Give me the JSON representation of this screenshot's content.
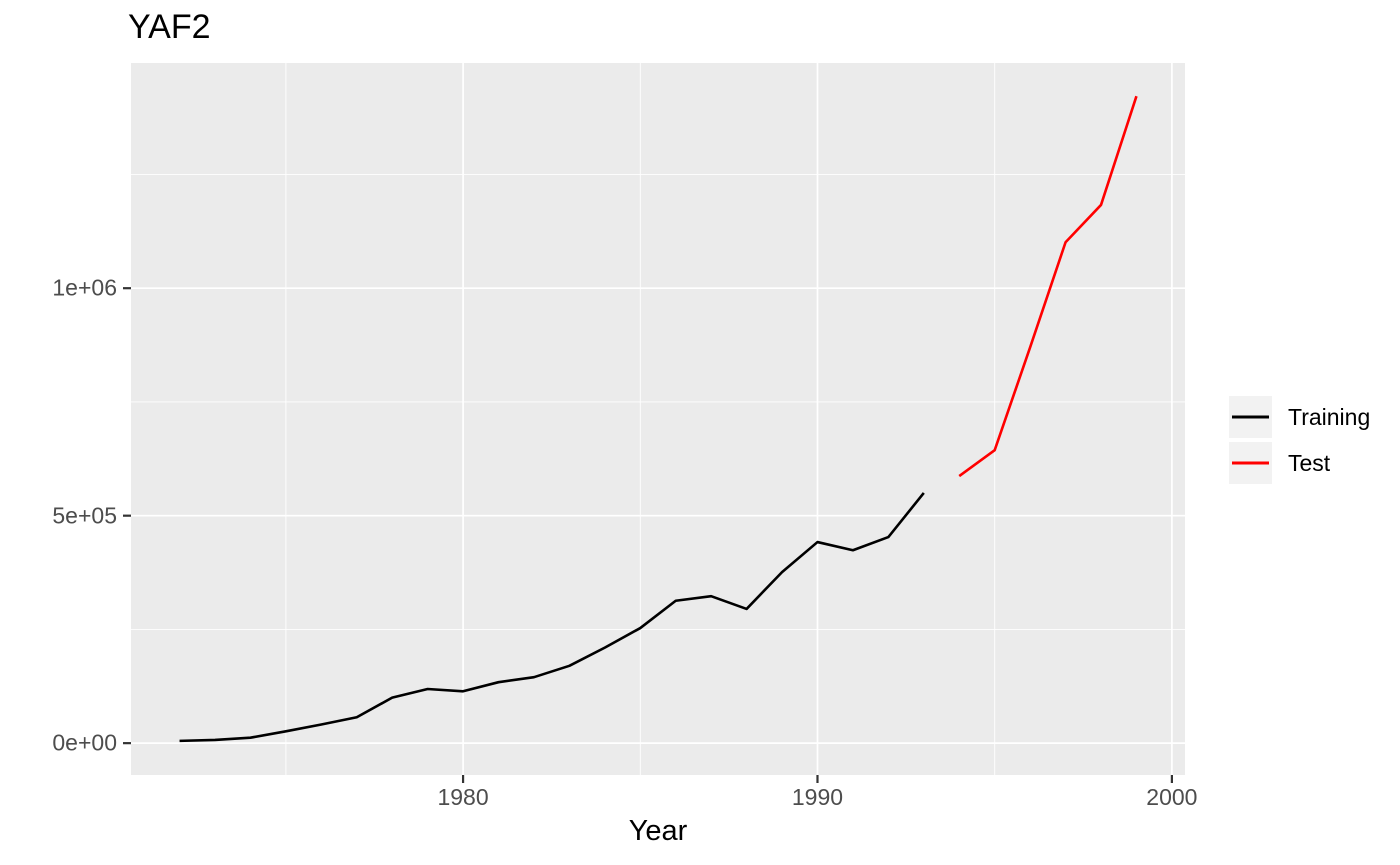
{
  "chart_data": {
    "type": "line",
    "title": "YAF2",
    "xlabel": "Year",
    "ylabel": "",
    "grid": true,
    "panel_background": "#EBEBEB",
    "grid_color": "#FFFFFF",
    "tick_label_color": "#4D4D4D",
    "tick_mark_color": "#333333",
    "legend_position": "right",
    "legend_key_background": "#F2F2F2",
    "xlim": [
      1970.63,
      2000.37
    ],
    "ylim": [
      -70000,
      1495000
    ],
    "x_ticks": {
      "major": [
        {
          "value": 1980,
          "label": "1980"
        },
        {
          "value": 1990,
          "label": "1990"
        },
        {
          "value": 2000,
          "label": "2000"
        }
      ],
      "minor": [
        1975,
        1985,
        1995
      ]
    },
    "y_ticks": {
      "major": [
        {
          "value": 0,
          "label": "0e+00"
        },
        {
          "value": 500000,
          "label": "5e+05"
        },
        {
          "value": 1000000,
          "label": "1e+06"
        }
      ],
      "minor": [
        250000,
        750000,
        1250000
      ]
    },
    "series": [
      {
        "name": "Training",
        "color": "#000000",
        "x": [
          1972,
          1973,
          1974,
          1975,
          1976,
          1977,
          1978,
          1979,
          1980,
          1981,
          1982,
          1983,
          1984,
          1985,
          1986,
          1987,
          1988,
          1989,
          1990,
          1991,
          1992,
          1993
        ],
        "values": [
          5000,
          7000,
          12000,
          26000,
          41000,
          57000,
          100000,
          119000,
          114000,
          134000,
          145000,
          170000,
          210000,
          253000,
          313000,
          323000,
          295000,
          376000,
          442000,
          424000,
          453000,
          550000
        ]
      },
      {
        "name": "Test",
        "color": "#FF0000",
        "x": [
          1994,
          1995,
          1996,
          1997,
          1998,
          1999
        ],
        "values": [
          587000,
          644000,
          870000,
          1101000,
          1183000,
          1422000
        ]
      }
    ]
  }
}
